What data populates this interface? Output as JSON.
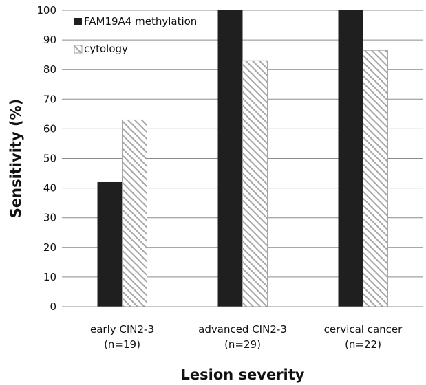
{
  "chart_data": {
    "type": "bar",
    "title": "",
    "xlabel": "Lesion severity",
    "ylabel": "Sensitivity (%)",
    "ylim": [
      0,
      100
    ],
    "yticks": [
      0,
      10,
      20,
      30,
      40,
      50,
      60,
      70,
      80,
      90,
      100
    ],
    "grid": "horizontal",
    "legend_position": "top-left",
    "categories": [
      [
        "early CIN2-3",
        "(n=19)"
      ],
      [
        "advanced CIN2-3",
        "(n=29)"
      ],
      [
        "cervical cancer",
        "(n=22)"
      ]
    ],
    "series": [
      {
        "name": "FAM19A4 methylation",
        "values": [
          42,
          100,
          100
        ],
        "color": "#1f1f1f",
        "pattern": "solid"
      },
      {
        "name": "cytology",
        "values": [
          63,
          83,
          86.5
        ],
        "color": "#a6a6a6",
        "pattern": "diagonal-hatch"
      }
    ]
  }
}
